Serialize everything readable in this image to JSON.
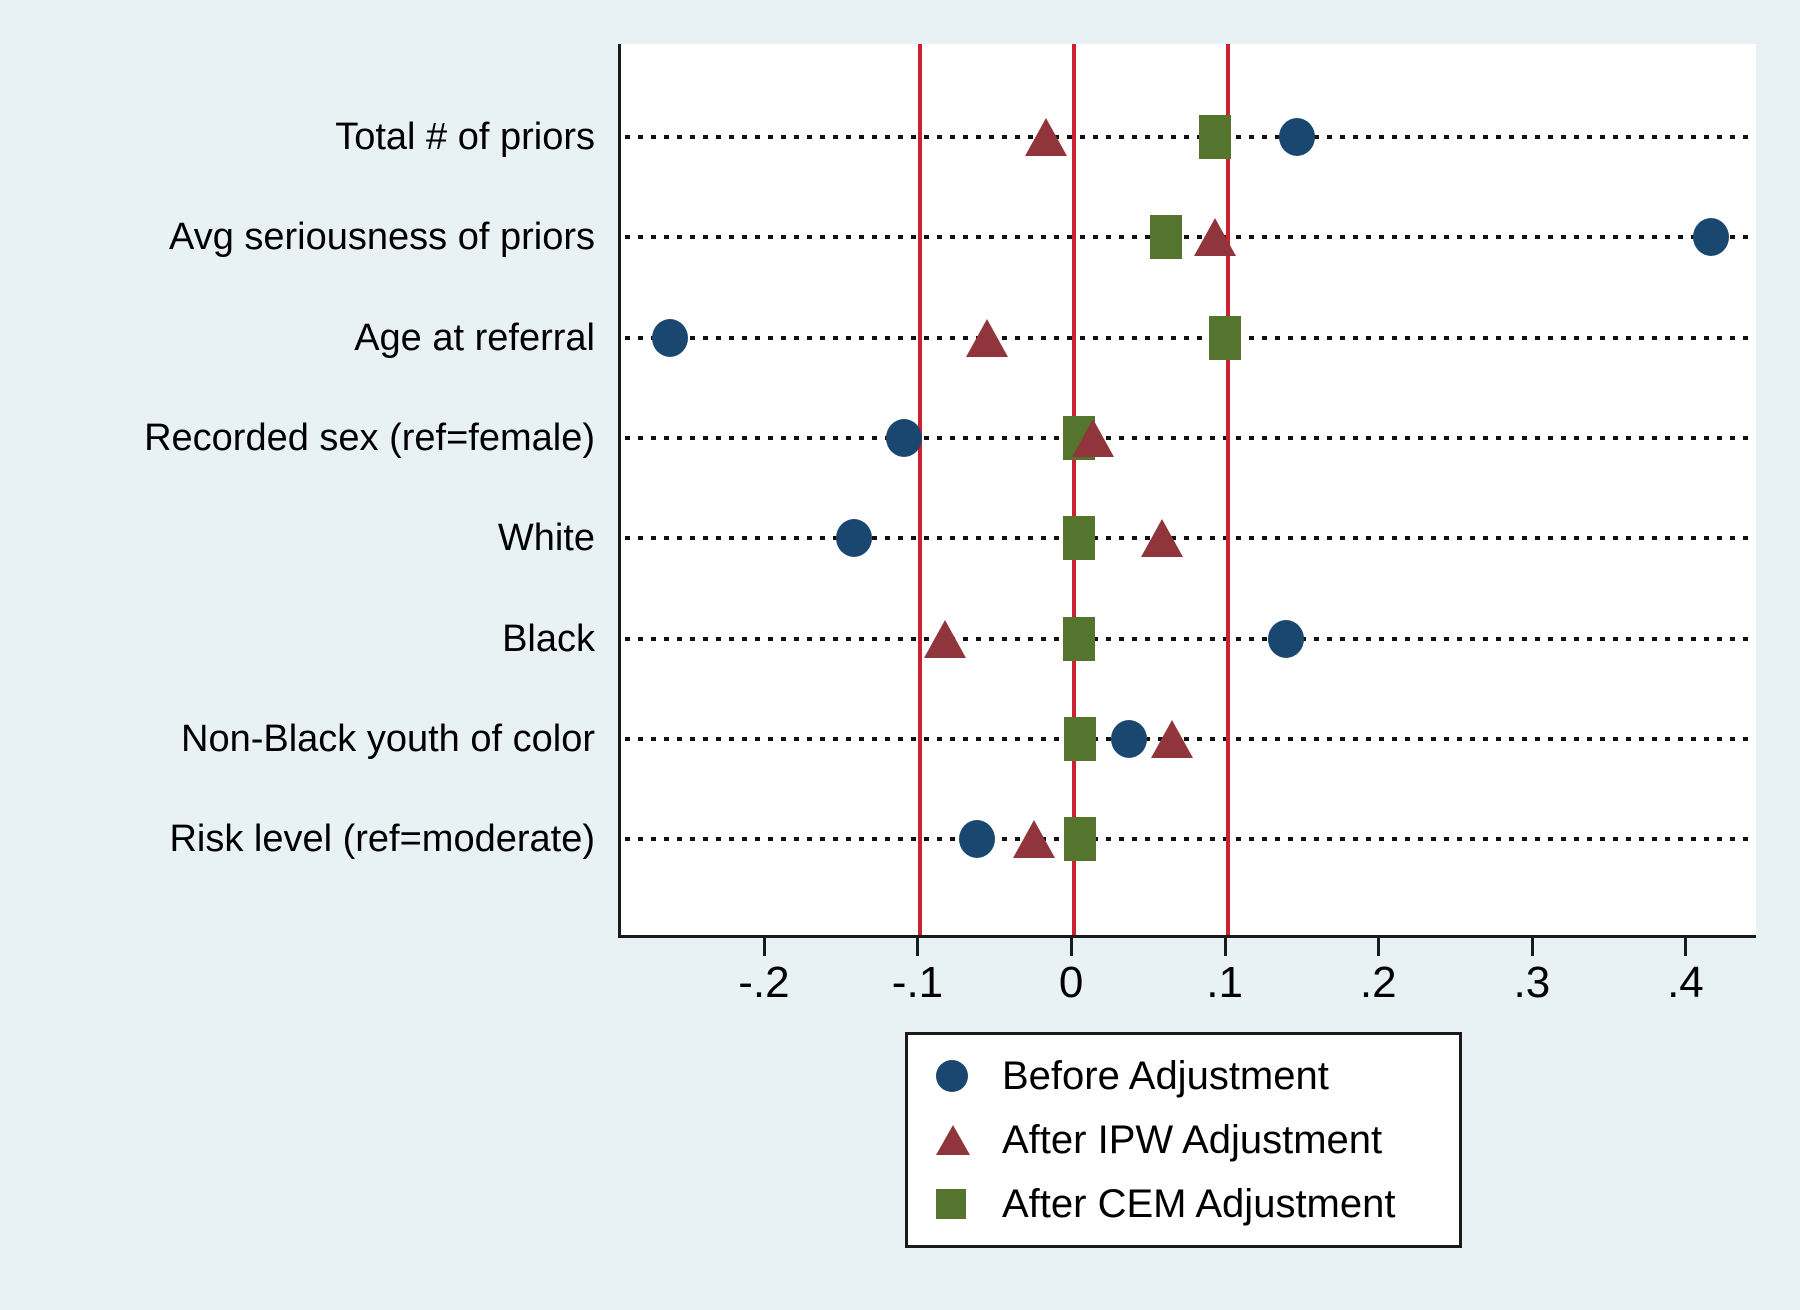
{
  "chart_data": {
    "type": "scatter",
    "title": "",
    "xlabel": "",
    "ylabel": "",
    "grid": "dotted-horizontal-rows",
    "legend_position": "bottom-center-outside",
    "xlim": [
      -0.295,
      0.444
    ],
    "x_ticks": [
      {
        "value": -0.2,
        "label": "-.2"
      },
      {
        "value": -0.1,
        "label": "-.1"
      },
      {
        "value": 0,
        "label": "0"
      },
      {
        "value": 0.1,
        "label": ".1"
      },
      {
        "value": 0.2,
        "label": ".2"
      },
      {
        "value": 0.3,
        "label": ".3"
      },
      {
        "value": 0.4,
        "label": ".4"
      }
    ],
    "reference_lines": {
      "values": [
        -0.1,
        0,
        0.1
      ],
      "color": "#cb2231"
    },
    "categories": [
      "Total # of priors",
      "Avg seriousness of priors",
      "Age at referral",
      "Recorded sex (ref=female)",
      "White",
      "Black",
      "Non-Black youth of color",
      "Risk level (ref=moderate)"
    ],
    "series": [
      {
        "name": "Before Adjustment",
        "marker": "circle",
        "color": "#1a476f",
        "values": [
          0.145,
          0.415,
          -0.263,
          -0.111,
          -0.143,
          0.138,
          0.036,
          -0.063
        ]
      },
      {
        "name": "After IPW Adjustment",
        "marker": "triangle",
        "color": "#90353b",
        "values": [
          -0.018,
          0.092,
          -0.057,
          0.012,
          0.057,
          -0.084,
          0.064,
          -0.026
        ]
      },
      {
        "name": "After CEM Adjustment",
        "marker": "square",
        "color": "#55752f",
        "values": [
          0.092,
          0.06,
          0.098,
          0.003,
          0.003,
          0.003,
          0.004,
          0.004
        ]
      }
    ]
  },
  "style": {
    "page_background": "#e8f1f4",
    "plot_background": "#ffffff",
    "axis_color": "#1a1a1a",
    "dotted_line_color": "#111111"
  }
}
